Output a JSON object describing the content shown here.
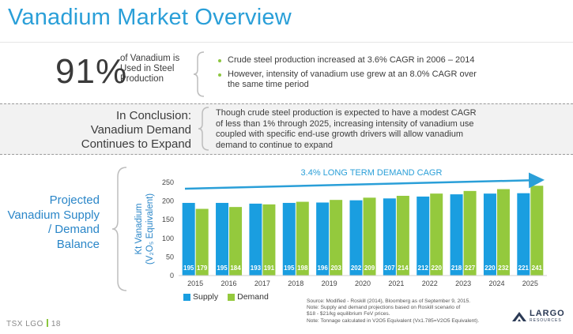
{
  "title": "Vanadium Market Overview",
  "stat": {
    "value": "91%",
    "description": "of Vanadium is Used in Steel Production"
  },
  "bullets": [
    "Crude steel production increased at 3.6% CAGR in 2006 – 2014",
    "However, intensity of vanadium use grew at an 8.0% CAGR over the same time period"
  ],
  "conclusion": {
    "title_lines": [
      "In Conclusion:",
      "Vanadium Demand",
      "Continues to Expand"
    ],
    "text": "Though crude steel production is expected to have a modest CAGR of less than 1% through 2025, increasing intensity of vanadium use coupled with specific end-use growth drivers will allow vanadium demand to continue to expand"
  },
  "projection": {
    "title_lines": [
      "Projected",
      "Vanadium Supply",
      "/ Demand",
      "Balance"
    ]
  },
  "colors": {
    "accent": "#2a9fd8",
    "supply": "#1a9ee0",
    "demand": "#94c93d"
  },
  "chart_data": {
    "type": "bar",
    "categories": [
      "2015",
      "2016",
      "2017",
      "2018",
      "2019",
      "2020",
      "2021",
      "2022",
      "2023",
      "2024",
      "2025"
    ],
    "series": [
      {
        "name": "Supply",
        "values": [
          195,
          195,
          193,
          195,
          196,
          202,
          207,
          212,
          218,
          220,
          221
        ]
      },
      {
        "name": "Demand",
        "values": [
          179,
          184,
          191,
          198,
          203,
          209,
          214,
          220,
          227,
          232,
          241
        ]
      }
    ],
    "ylabel_line1": "Kt Vanadium",
    "ylabel_line2": "(V₂O₅ Equivalent)",
    "yticks": [
      0,
      50,
      100,
      150,
      200,
      250
    ],
    "ylim": [
      0,
      250
    ],
    "annotation": "3.4% LONG TERM DEMAND CAGR",
    "legend": [
      "Supply",
      "Demand"
    ],
    "legend_position": "bottom-left",
    "grid": false
  },
  "source_note": {
    "lines": [
      "Source: Modified - Roskill (2014), Bloomberg as of September 9, 2015.",
      "Note: Supply and demand projections based on Roskill scenario of",
      "$18 - $21/kg equilibrium FeV prices.",
      "Note: Tonnage calculated in V2O5 Equivalent  (Vx1.785=V2O5 Equivalent)."
    ]
  },
  "footer": {
    "ticker": "TSX LGO",
    "page": "18"
  },
  "logo": {
    "name": "LARGO",
    "sub": "RESOURCES"
  }
}
